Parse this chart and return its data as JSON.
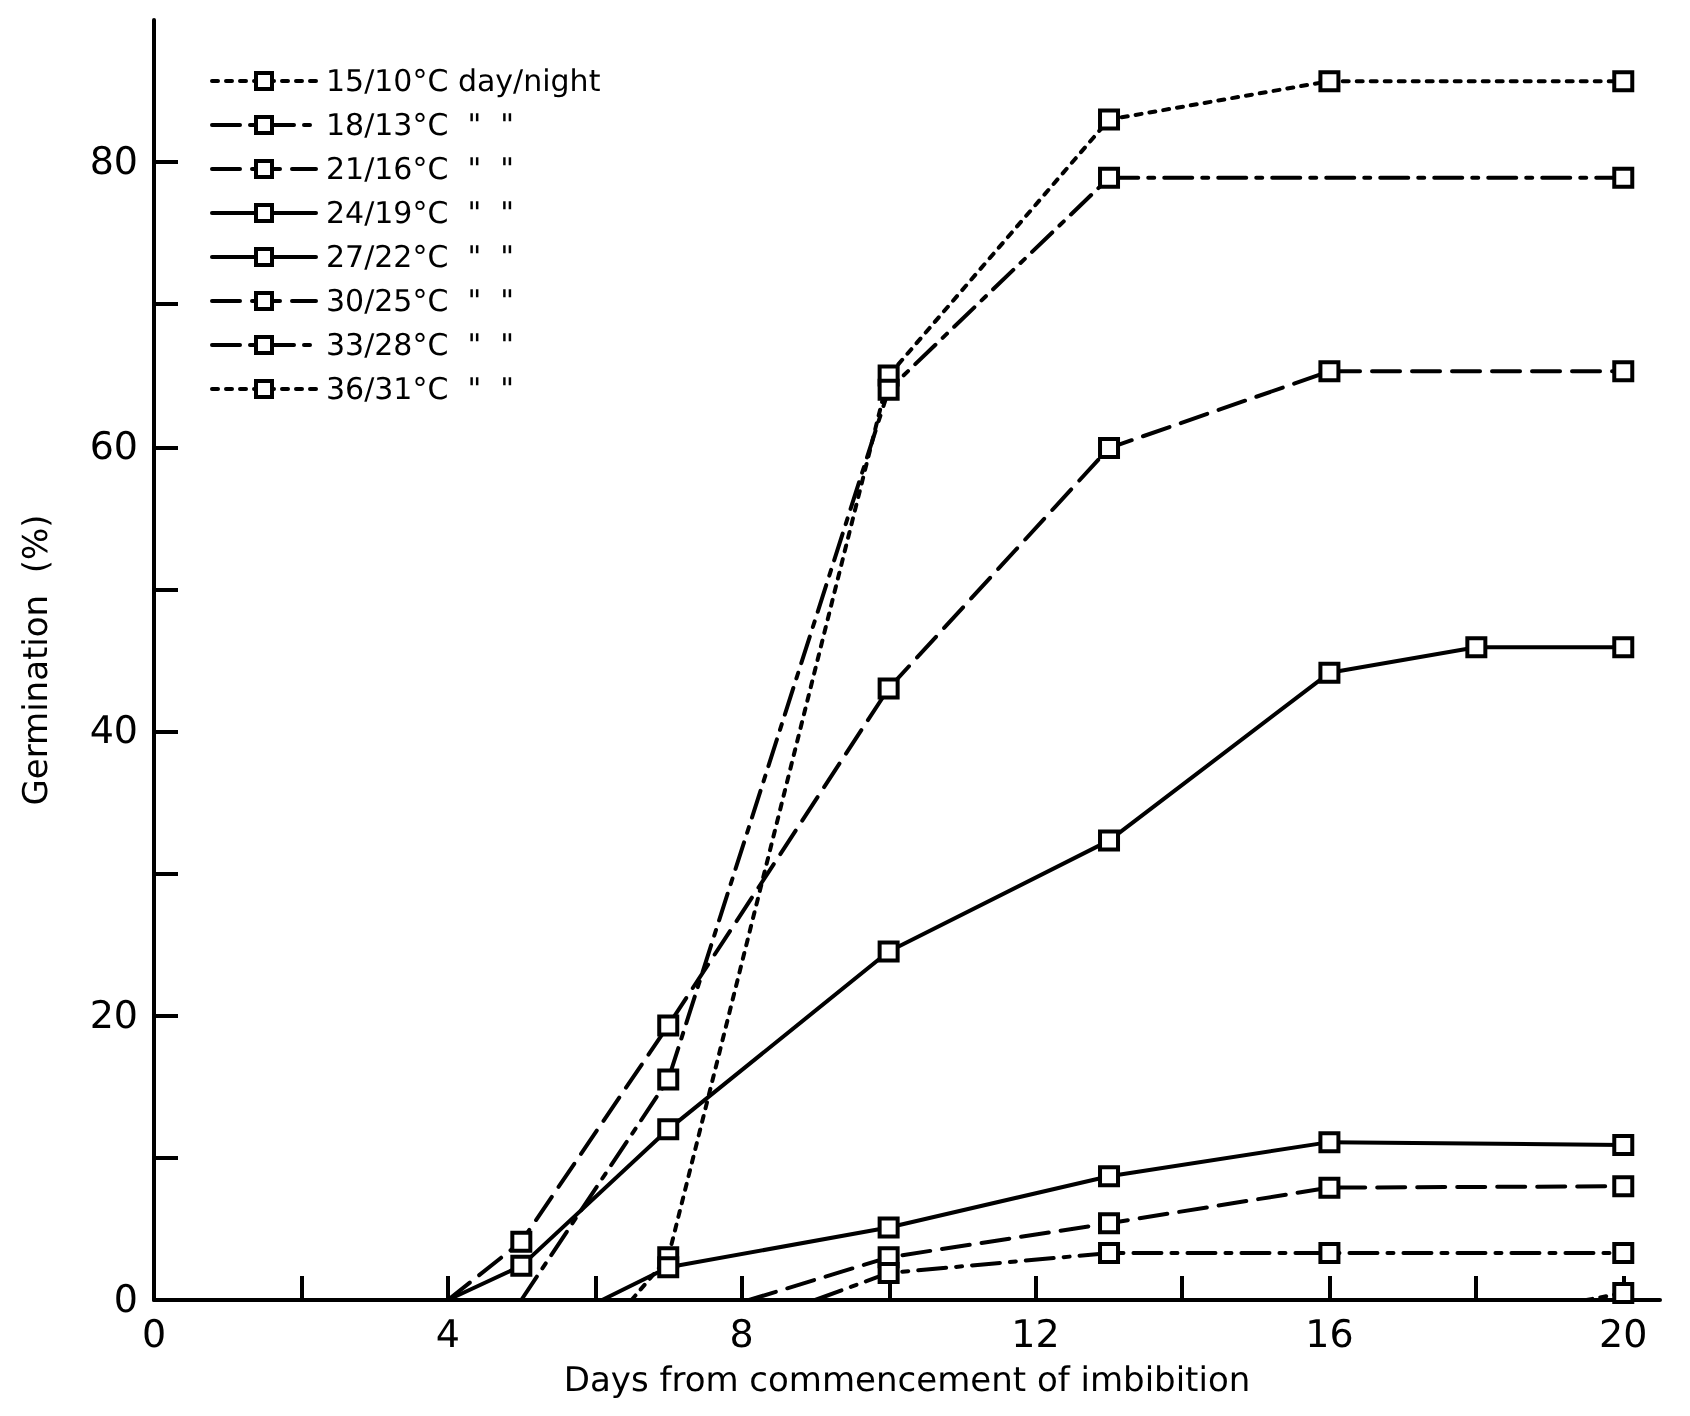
{
  "chart_data": {
    "type": "line",
    "xlabel": "Days from commencement of imbibition",
    "ylabel": "Germination  (%)",
    "xlim": [
      0,
      20.5
    ],
    "xticks": [
      0,
      {
        "value": 2,
        "label": null
      },
      4,
      {
        "value": 6,
        "label": null
      },
      8,
      {
        "value": 10,
        "label": null
      },
      12,
      {
        "value": 14,
        "label": null
      },
      16,
      {
        "value": 18,
        "label": null
      },
      20
    ],
    "ylim": [
      0,
      90
    ],
    "yticks": [
      0,
      {
        "value": 10,
        "label": null
      },
      20,
      {
        "value": 30,
        "label": null
      },
      40,
      {
        "value": 50,
        "label": null
      },
      60,
      {
        "value": 70,
        "label": null
      },
      80
    ],
    "grid": false,
    "legend": "top left",
    "marker": "square",
    "series": [
      {
        "name": "15/10°C day/night",
        "color": "#000000",
        "line_style": "dotted",
        "x": [
          6.5,
          7,
          10,
          13,
          16,
          20
        ],
        "values": [
          0,
          3,
          65,
          83,
          85.7,
          85.7
        ]
      },
      {
        "name": "18/13°C  \"  \"",
        "color": "#000000",
        "line_style": "dashdot",
        "x": [
          5,
          7,
          10,
          13,
          20
        ],
        "values": [
          0,
          15.5,
          64,
          78.9,
          78.9
        ]
      },
      {
        "name": "21/16°C  \"  \"",
        "color": "#000000",
        "line_style": "dashed",
        "x": [
          4,
          5,
          7,
          10,
          13,
          16,
          20
        ],
        "values": [
          0,
          4.1,
          19.3,
          43,
          59.9,
          65.3,
          65.3
        ]
      },
      {
        "name": "24/19°C  \"  \"",
        "color": "#000000",
        "line_style": "solid",
        "x": [
          4,
          5,
          7,
          10,
          13,
          16,
          18,
          20
        ],
        "values": [
          0,
          2.4,
          12,
          24.5,
          32.3,
          44.1,
          45.9,
          45.9
        ]
      },
      {
        "name": "27/22°C  \"  \"",
        "color": "#000000",
        "line_style": "solid",
        "x": [
          6.1,
          7,
          10,
          13,
          16,
          20
        ],
        "values": [
          0,
          2.3,
          5.1,
          8.7,
          11.1,
          10.9
        ]
      },
      {
        "name": "30/25°C  \"  \"",
        "color": "#000000",
        "line_style": "dashed",
        "x": [
          8.1,
          10,
          13,
          16,
          20
        ],
        "values": [
          0,
          3,
          5.4,
          7.9,
          8
        ]
      },
      {
        "name": "33/28°C  \"  \"",
        "color": "#000000",
        "line_style": "dashdot",
        "x": [
          9,
          10,
          13,
          16,
          20
        ],
        "values": [
          0,
          1.9,
          3.3,
          3.3,
          3.3
        ]
      },
      {
        "name": "36/31°C  \"  \"",
        "color": "#000000",
        "line_style": "dotted",
        "x": [
          19.5,
          20
        ],
        "values": [
          0,
          0.5
        ]
      }
    ]
  }
}
